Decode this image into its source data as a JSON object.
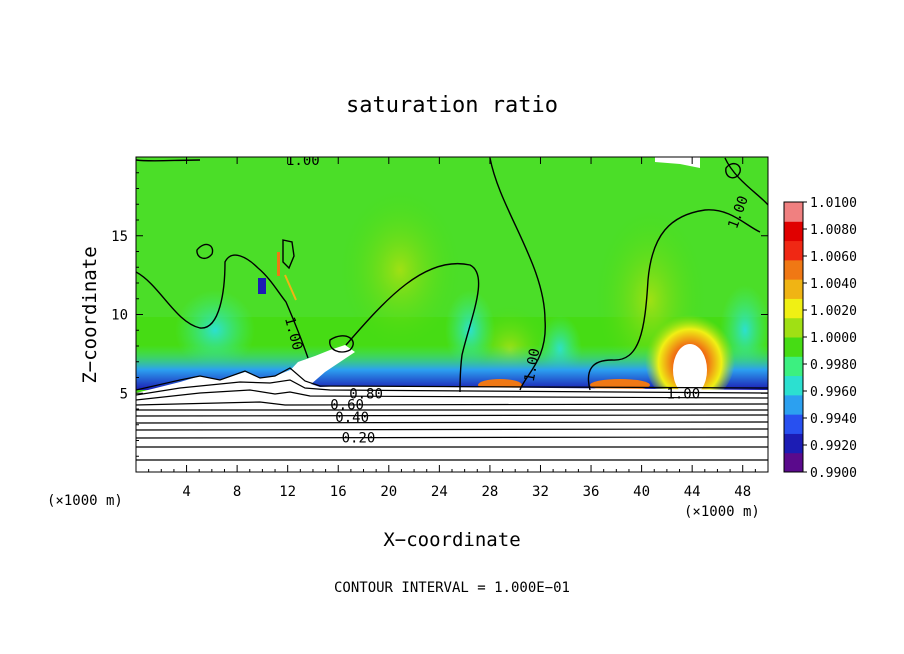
{
  "chart_data": {
    "type": "heatmap",
    "title": "saturation ratio",
    "xlabel": "X−coordinate",
    "ylabel": "Z−coordinate",
    "x_unit_left": "(×1000 m)",
    "x_unit_right": "(×1000 m)",
    "footer": "CONTOUR INTERVAL = 1.000E−01",
    "xlim": [
      0,
      50
    ],
    "ylim": [
      0,
      20
    ],
    "x_ticks": [
      4,
      8,
      12,
      16,
      20,
      24,
      28,
      32,
      36,
      40,
      44,
      48
    ],
    "x_tick_labels": [
      "4",
      "8",
      "12",
      "16",
      "20",
      "24",
      "28",
      "32",
      "36",
      "40",
      "44",
      "48"
    ],
    "y_ticks": [
      5,
      10,
      15
    ],
    "y_tick_labels": [
      "5",
      "10",
      "15"
    ],
    "colorbar": {
      "min": 0.99,
      "max": 1.01,
      "labels": [
        "1.0100",
        "1.0080",
        "1.0060",
        "1.0040",
        "1.0020",
        "1.0000",
        "0.9980",
        "0.9960",
        "0.9940",
        "0.9920",
        "0.9900"
      ],
      "colors": [
        "#5a0a8c",
        "#1c1cb4",
        "#2850f0",
        "#2ca0f0",
        "#2ce0d0",
        "#3cf080",
        "#46dc14",
        "#a0e014",
        "#f0f014",
        "#f0b414",
        "#f07814",
        "#f02814",
        "#e00000",
        "#f08080"
      ]
    },
    "contour_labels": [
      {
        "text": "1.00",
        "x": 13.2,
        "y": 19.8
      },
      {
        "text": "1.00",
        "x": 47.6,
        "y": 16.5
      },
      {
        "text": "1.00",
        "x": 12.5,
        "y": 8.8
      },
      {
        "text": "1.00",
        "x": 31.3,
        "y": 6.8
      },
      {
        "text": "1.00",
        "x": 43.3,
        "y": 5.0
      },
      {
        "text": "0.80",
        "x": 18.2,
        "y": 5.0
      },
      {
        "text": "0.60",
        "x": 16.7,
        "y": 4.3
      },
      {
        "text": "0.40",
        "x": 17.1,
        "y": 3.5
      },
      {
        "text": "0.20",
        "x": 17.6,
        "y": 2.2
      }
    ],
    "regions": [
      {
        "name": "supersaturated-core",
        "x": 44,
        "y": 7,
        "value": 1.008
      },
      {
        "name": "subsaturated-boundary-layer",
        "y_max": 5,
        "value_range": [
          0.0,
          1.0
        ]
      }
    ]
  }
}
